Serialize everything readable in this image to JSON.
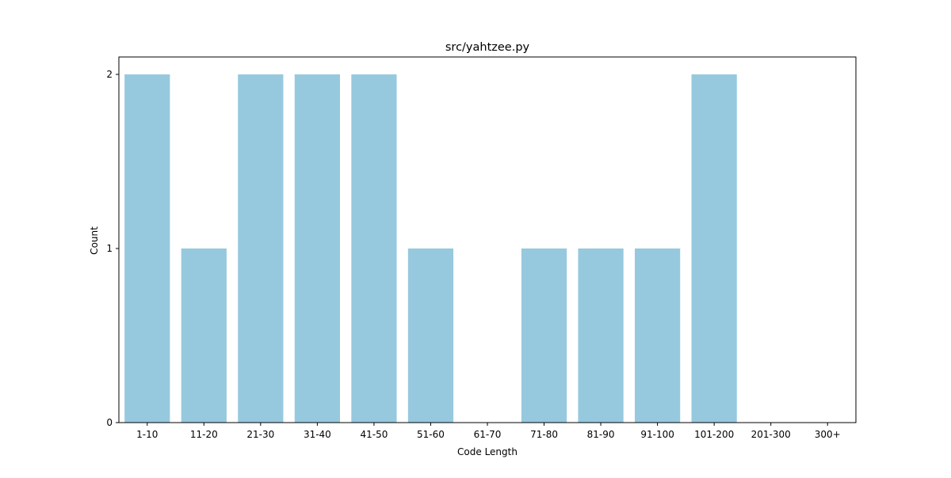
{
  "chart_data": {
    "type": "bar",
    "title": "src/yahtzee.py",
    "xlabel": "Code Length",
    "ylabel": "Count",
    "categories": [
      "1-10",
      "11-20",
      "21-30",
      "31-40",
      "41-50",
      "51-60",
      "61-70",
      "71-80",
      "81-90",
      "91-100",
      "101-200",
      "201-300",
      "300+"
    ],
    "values": [
      2,
      1,
      2,
      2,
      2,
      1,
      0,
      1,
      1,
      1,
      2,
      0,
      0
    ],
    "ylim": [
      0,
      2.1
    ],
    "yticks": [
      "0",
      "1",
      "2"
    ],
    "bar_color": "#96c9de",
    "grid": false,
    "legend": "none"
  }
}
